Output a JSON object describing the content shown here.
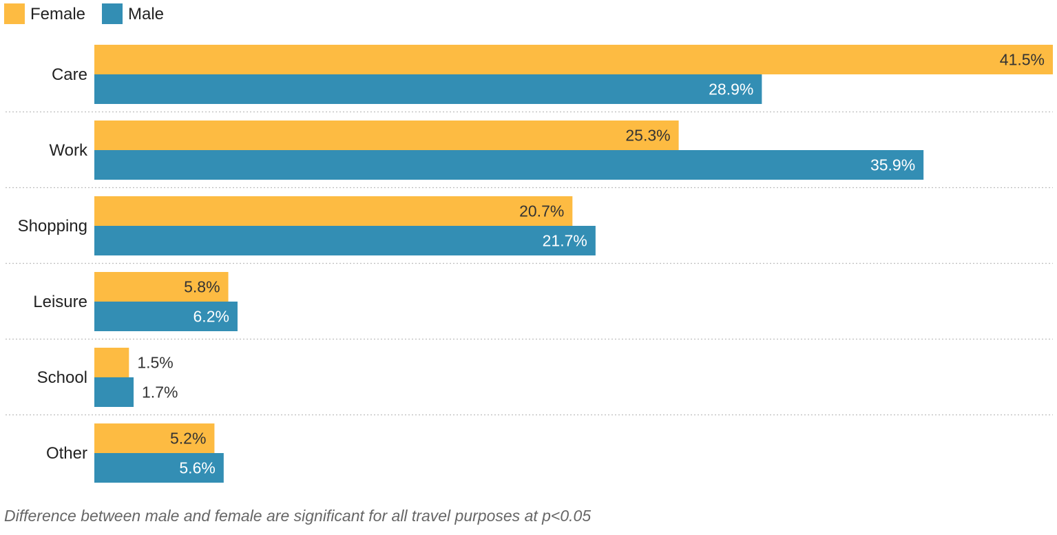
{
  "chart_data": {
    "type": "bar",
    "orientation": "horizontal",
    "categories": [
      "Care",
      "Work",
      "Shopping",
      "Leisure",
      "School",
      "Other"
    ],
    "series": [
      {
        "name": "Female",
        "color": "#FDBB42",
        "values": [
          41.5,
          25.3,
          20.7,
          5.8,
          1.5,
          5.2
        ],
        "labels": [
          "41.5%",
          "25.3%",
          "20.7%",
          "5.8%",
          "1.5%",
          "5.2%"
        ]
      },
      {
        "name": "Male",
        "color": "#338EB4",
        "values": [
          28.9,
          35.9,
          21.7,
          6.2,
          1.7,
          5.6
        ],
        "labels": [
          "28.9%",
          "35.9%",
          "21.7%",
          "6.2%",
          "1.7%",
          "5.6%"
        ]
      }
    ],
    "xlim": [
      0,
      41.5
    ],
    "legend_position": "top-left",
    "grid": false,
    "unit": "%"
  },
  "note": "Difference between male and female are significant for all travel purposes at p<0.05"
}
